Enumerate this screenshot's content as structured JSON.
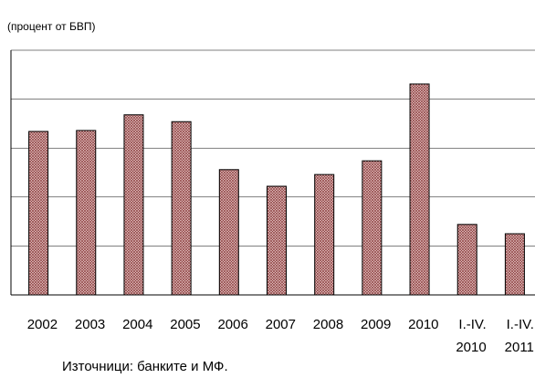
{
  "chart_data": {
    "type": "bar",
    "title": "(процент от БВП)",
    "source": "Източници: банките и МФ.",
    "categories": [
      "2002",
      "2003",
      "2004",
      "2005",
      "2006",
      "2007",
      "2008",
      "2009",
      "2010",
      "I.-IV. 2010",
      "I.-IV. 2011"
    ],
    "values": [
      3.34,
      3.36,
      3.68,
      3.54,
      2.56,
      2.22,
      2.46,
      2.74,
      4.31,
      1.44,
      1.25
    ],
    "color": "#c99a9a",
    "ylim": [
      0,
      5
    ],
    "yticks": [
      0,
      1,
      2,
      3,
      4,
      5
    ],
    "grid": true,
    "tick_labels": false
  }
}
